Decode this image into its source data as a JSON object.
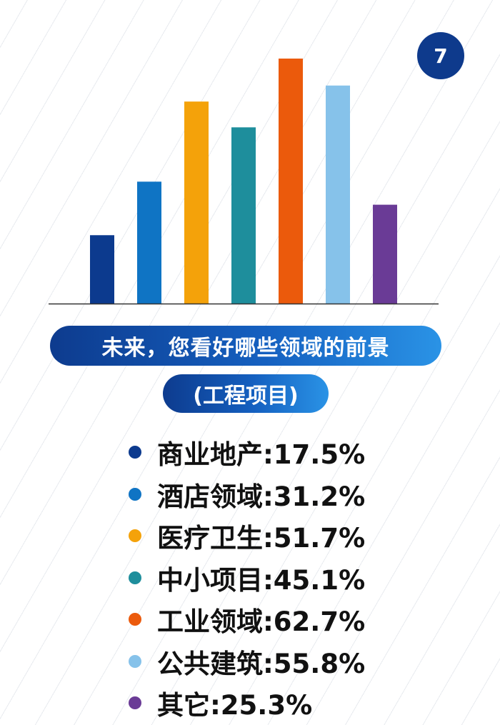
{
  "badge": "7",
  "title": "未来，您看好哪些领域的前景",
  "subtitle": "(工程项目)",
  "chart_data": {
    "type": "bar",
    "categories": [
      "商业地产",
      "酒店领域",
      "医疗卫生",
      "中小项目",
      "工业领域",
      "公共建筑",
      "其它"
    ],
    "values": [
      17.5,
      31.2,
      51.7,
      45.1,
      62.7,
      55.8,
      25.3
    ],
    "colors": [
      "#0c3a8e",
      "#0f74c4",
      "#f4a20a",
      "#1e8e9c",
      "#eb5a0c",
      "#86c2ea",
      "#6a3b96"
    ],
    "value_suffix": "%",
    "grid": false,
    "legend": "below"
  },
  "legend_items": [
    {
      "label": "商业地产:17.5%",
      "color": "#0c3a8e"
    },
    {
      "label": "酒店领域:31.2%",
      "color": "#0f74c4"
    },
    {
      "label": "医疗卫生:51.7%",
      "color": "#f4a20a"
    },
    {
      "label": "中小项目:45.1%",
      "color": "#1e8e9c"
    },
    {
      "label": "工业领域:62.7%",
      "color": "#eb5a0c"
    },
    {
      "label": "公共建筑:55.8%",
      "color": "#86c2ea"
    },
    {
      "label": "其它:25.3%",
      "color": "#6a3b96"
    }
  ]
}
